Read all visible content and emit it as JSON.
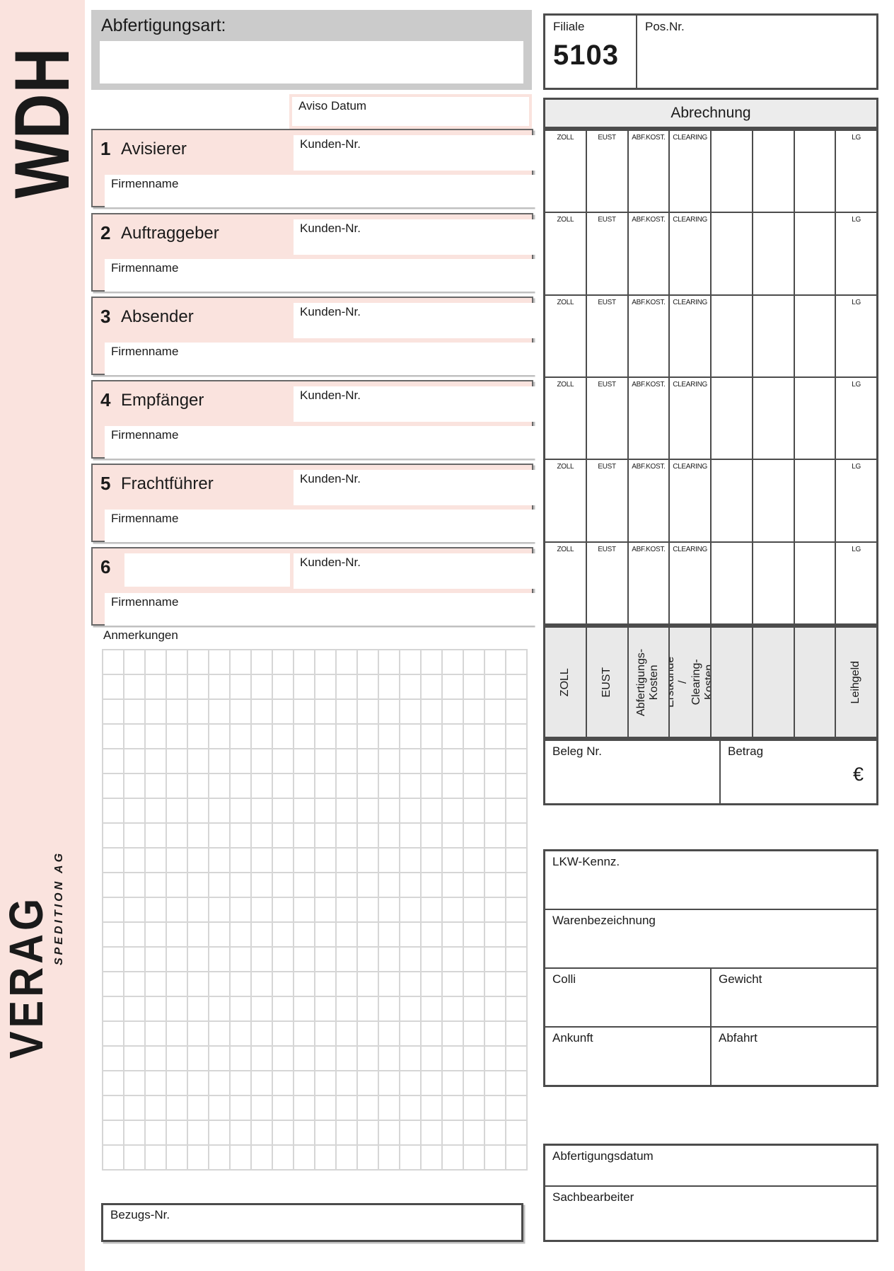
{
  "branding": {
    "sidebar_top": "WDH",
    "sidebar_bottom": "VERAG",
    "sidebar_bottom_sub": "SPEDITION AG"
  },
  "header": {
    "abfertigungsart_label": "Abfertigungsart:",
    "filiale_label": "Filiale",
    "filiale_value": "5103",
    "pos_nr_label": "Pos.Nr.",
    "aviso_datum_label": "Aviso Datum"
  },
  "sections": [
    {
      "number": "1",
      "label": "Avisierer",
      "kunden_label": "Kunden-Nr.",
      "firma_label": "Firmenname"
    },
    {
      "number": "2",
      "label": "Auftraggeber",
      "kunden_label": "Kunden-Nr.",
      "firma_label": "Firmenname"
    },
    {
      "number": "3",
      "label": "Absender",
      "kunden_label": "Kunden-Nr.",
      "firma_label": "Firmenname"
    },
    {
      "number": "4",
      "label": "Empfänger",
      "kunden_label": "Kunden-Nr.",
      "firma_label": "Firmenname"
    },
    {
      "number": "5",
      "label": "Frachtführer",
      "kunden_label": "Kunden-Nr.",
      "firma_label": "Firmenname"
    },
    {
      "number": "6",
      "label": "",
      "kunden_label": "Kunden-Nr.",
      "firma_label": "Firmenname"
    }
  ],
  "abrechnung": {
    "title": "Abrechnung",
    "col_headers": [
      "ZOLL",
      "EUST",
      "ABF.KOST.",
      "CLEARING",
      "",
      "",
      "",
      "LG"
    ],
    "row_count": 6,
    "vertical_labels": [
      "ZOLL",
      "EUST",
      "Abfertigungs-\nKosten",
      "Erstkunde /\nClearing-Kosten",
      "",
      "",
      "",
      "Leihgeld"
    ],
    "beleg_label": "Beleg Nr.",
    "betrag_label": "Betrag",
    "currency_symbol": "€"
  },
  "anmerkungen": {
    "label": "Anmerkungen"
  },
  "cargo": {
    "lkw_label": "LKW-Kennz.",
    "waren_label": "Warenbezeichnung",
    "colli_label": "Colli",
    "gewicht_label": "Gewicht",
    "ankunft_label": "Ankunft",
    "abfahrt_label": "Abfahrt"
  },
  "processing": {
    "abfertigungsdatum_label": "Abfertigungsdatum",
    "sachbearbeiter_label": "Sachbearbeiter"
  },
  "footer": {
    "bezugs_label": "Bezugs-Nr."
  },
  "colors": {
    "pink": "#fae3de",
    "gray_header": "#cbcbcb",
    "table_header_gray": "#ececec",
    "vertical_cell_gray": "#e9e9e9",
    "border": "#4c4c4c",
    "grid_line": "#d6d6d6"
  }
}
